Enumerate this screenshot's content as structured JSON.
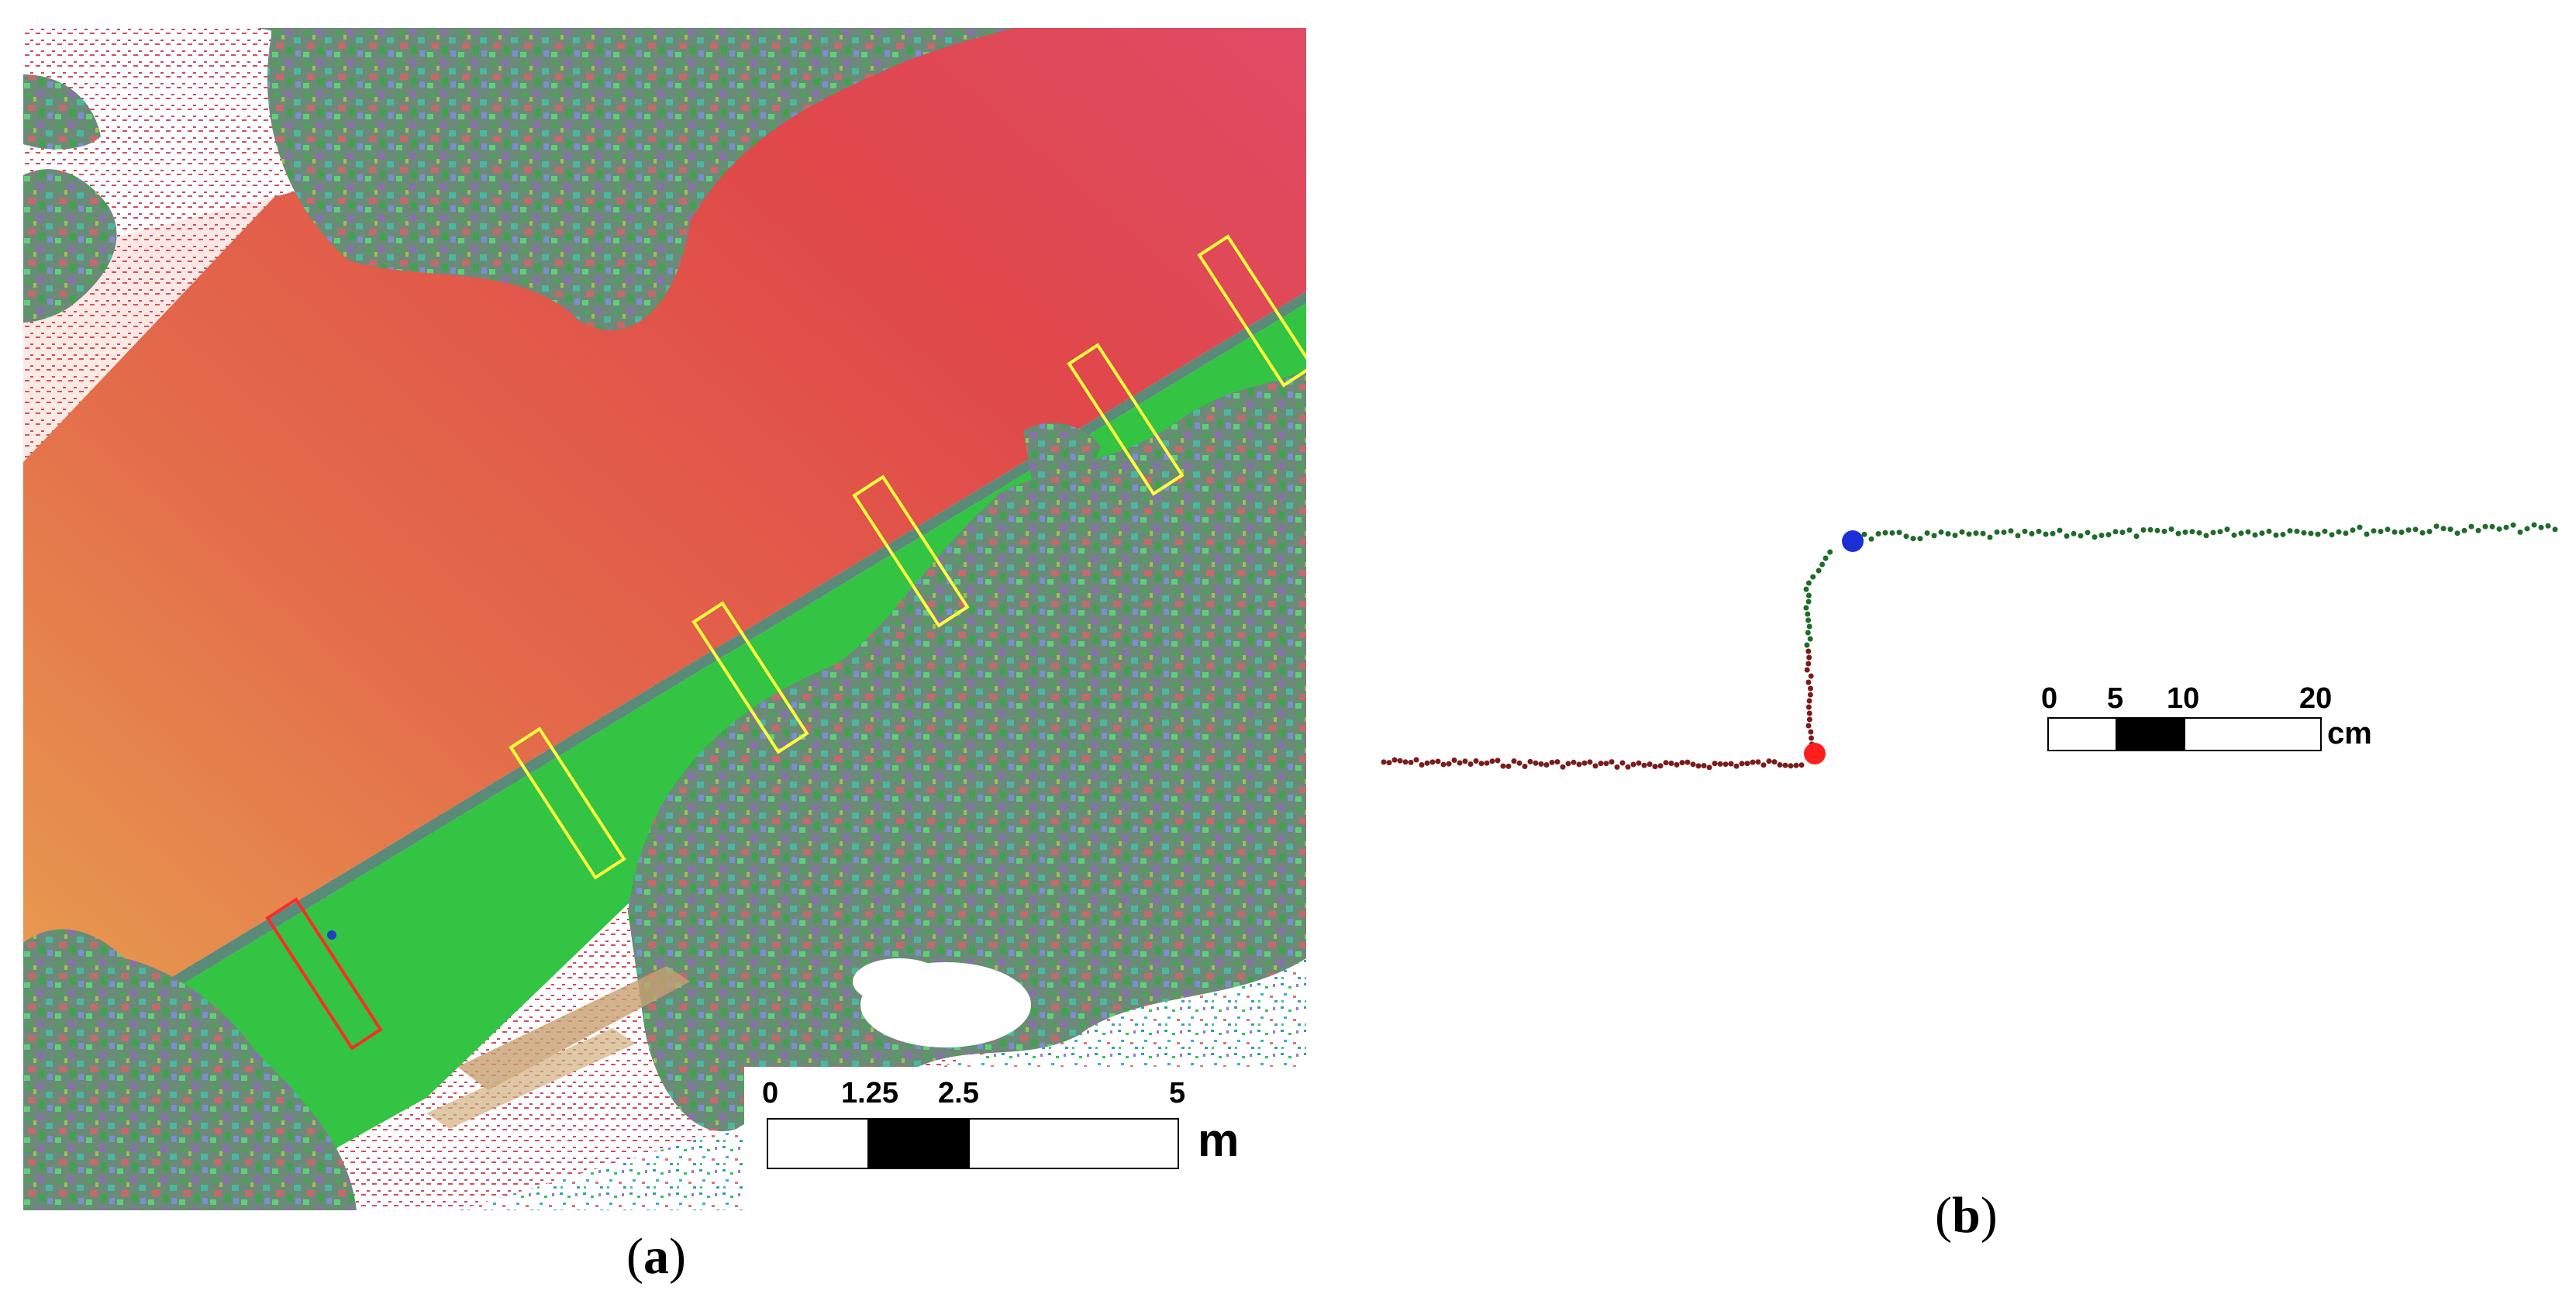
{
  "panel_a": {
    "caption_letter": "a",
    "scale_bar": {
      "ticks": [
        "0",
        "1.25",
        "2.5",
        "5"
      ],
      "unit": "m"
    },
    "colors": {
      "road": "#e0484a",
      "road_edge": "#e88a4a",
      "sidewalk": "#33c443",
      "profile_box_selected": "#ff2a2a",
      "profile_box": "#ffff3c"
    }
  },
  "panel_b": {
    "caption_letter": "b",
    "scale_bar": {
      "ticks": [
        "0",
        "5",
        "10",
        "20"
      ],
      "unit": "cm"
    },
    "colors": {
      "lower_points": "#7a1c1c",
      "upper_points": "#1f6b2a",
      "top_point": "#1a2fd6",
      "bottom_point": "#ff1e1e"
    }
  }
}
